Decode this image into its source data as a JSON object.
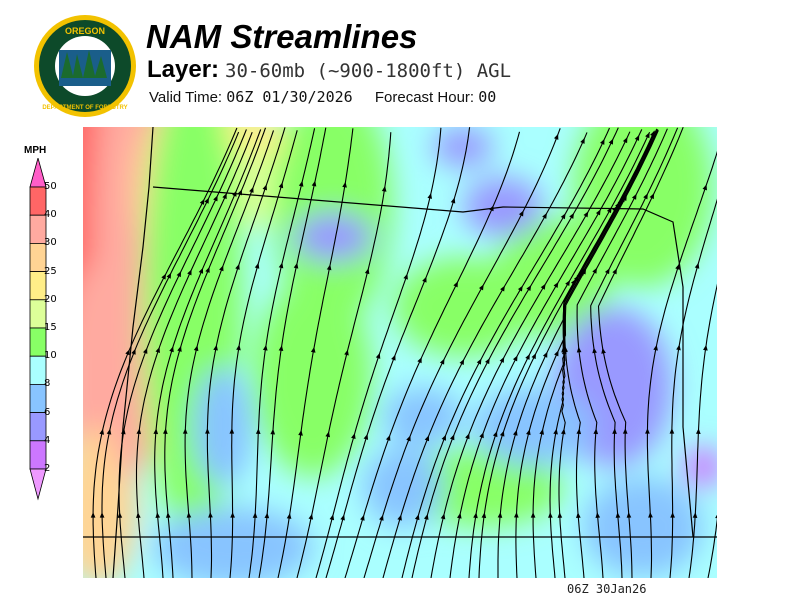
{
  "header": {
    "logo_text": "OREGON DEPARTMENT OF FORESTRY",
    "title": "NAM Streamlines",
    "layer_label": "Layer:",
    "layer_value": "30-60mb (~900-1800ft) AGL",
    "valid_time_label": "Valid Time:",
    "valid_time_value": "06Z 01/30/2026",
    "forecast_hour_label": "Forecast Hour:",
    "forecast_hour_value": "00"
  },
  "legend": {
    "unit": "MPH",
    "ticks": [
      "50",
      "40",
      "30",
      "25",
      "20",
      "15",
      "10",
      "8",
      "6",
      "4",
      "2"
    ],
    "colors": [
      "#ff5ec8",
      "#ff6666",
      "#ffaaa0",
      "#ffd494",
      "#ffee88",
      "#ddff99",
      "#88ff66",
      "#aaffff",
      "#88c4ff",
      "#9999ff",
      "#cc77ff",
      "#ee99ff"
    ]
  },
  "footer": {
    "timestamp": "06Z 30Jan26"
  }
}
